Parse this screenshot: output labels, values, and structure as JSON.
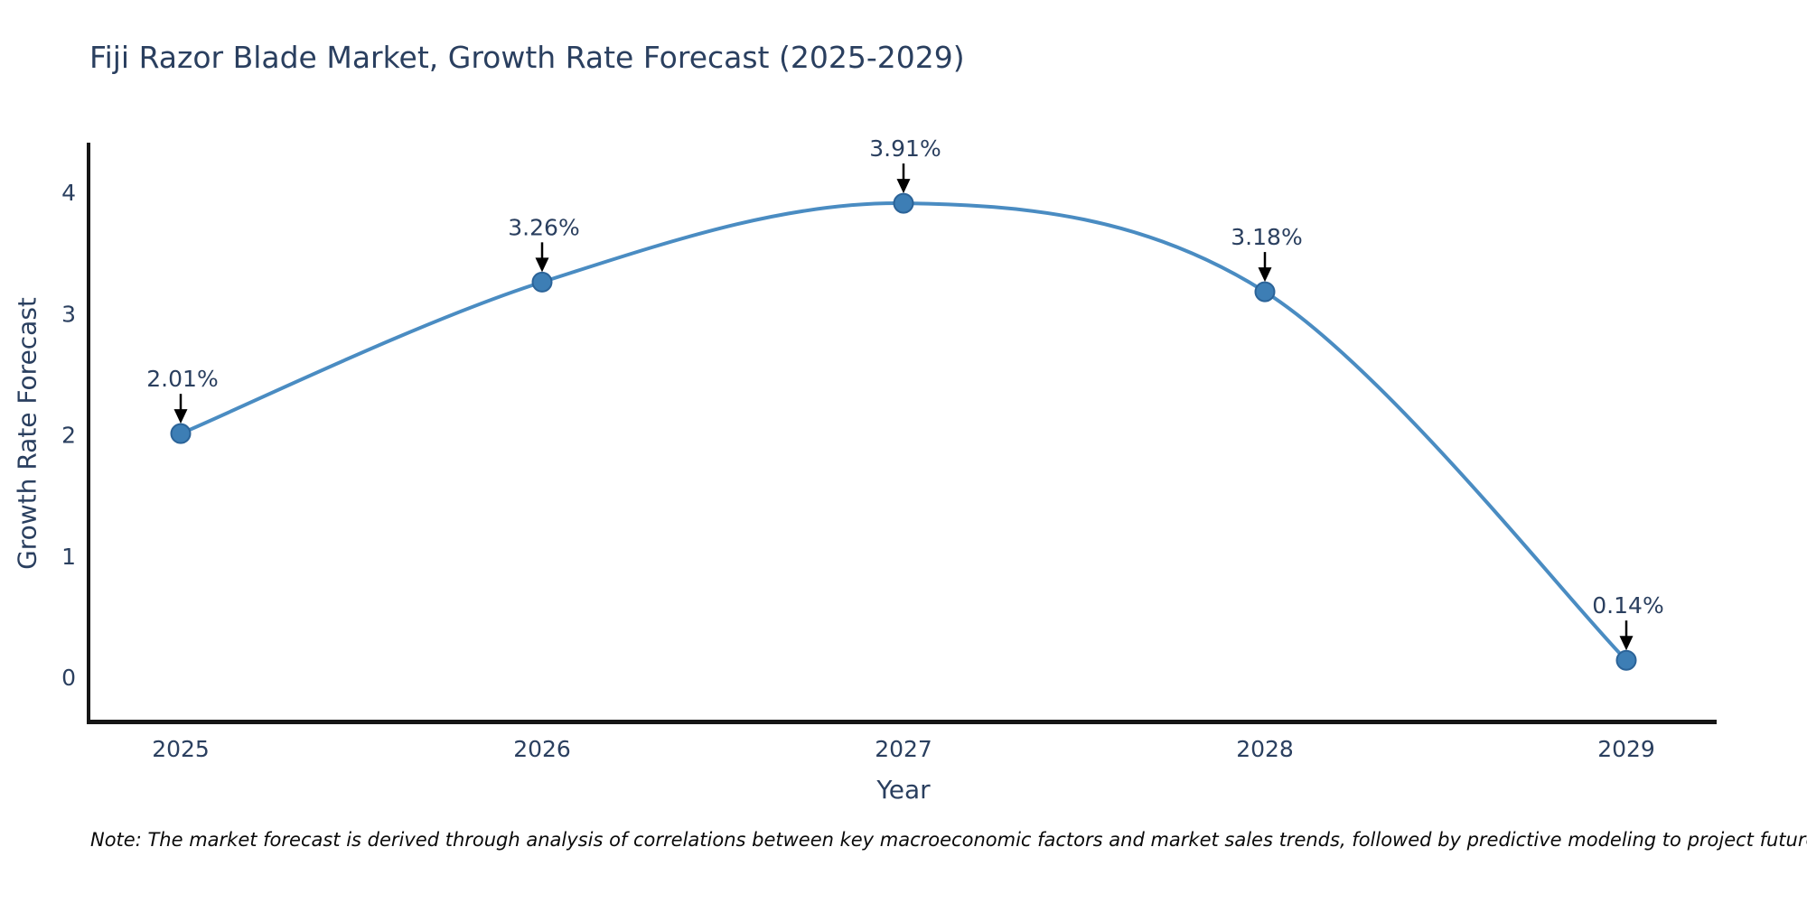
{
  "chart_data": {
    "type": "line",
    "title": "Fiji Razor Blade Market, Growth Rate Forecast (2025-2029)",
    "xlabel": "Year",
    "ylabel": "Growth Rate Forecast",
    "categories": [
      "2025",
      "2026",
      "2027",
      "2028",
      "2029"
    ],
    "values": [
      2.01,
      3.26,
      3.91,
      3.18,
      0.14
    ],
    "point_labels": [
      "2.01%",
      "3.26%",
      "3.91%",
      "3.18%",
      "0.14%"
    ],
    "yticks": [
      0,
      1,
      2,
      3,
      4
    ],
    "ylim": [
      -0.37,
      4.41
    ],
    "line_shape": "spline",
    "grid": false,
    "legend": "none",
    "note": "Note: The market forecast is derived through analysis of correlations between key macroeconomic factors and market sales trends, followed by predictive modeling to project future sales.",
    "colors": {
      "line": "#4a8cc2",
      "marker_fill": "#3d7eb5",
      "marker_edge": "#2b6398",
      "axis_line": "#161616",
      "text": "#2a3f5f",
      "annotation_arrow": "#000000",
      "background": "#ffffff"
    }
  }
}
